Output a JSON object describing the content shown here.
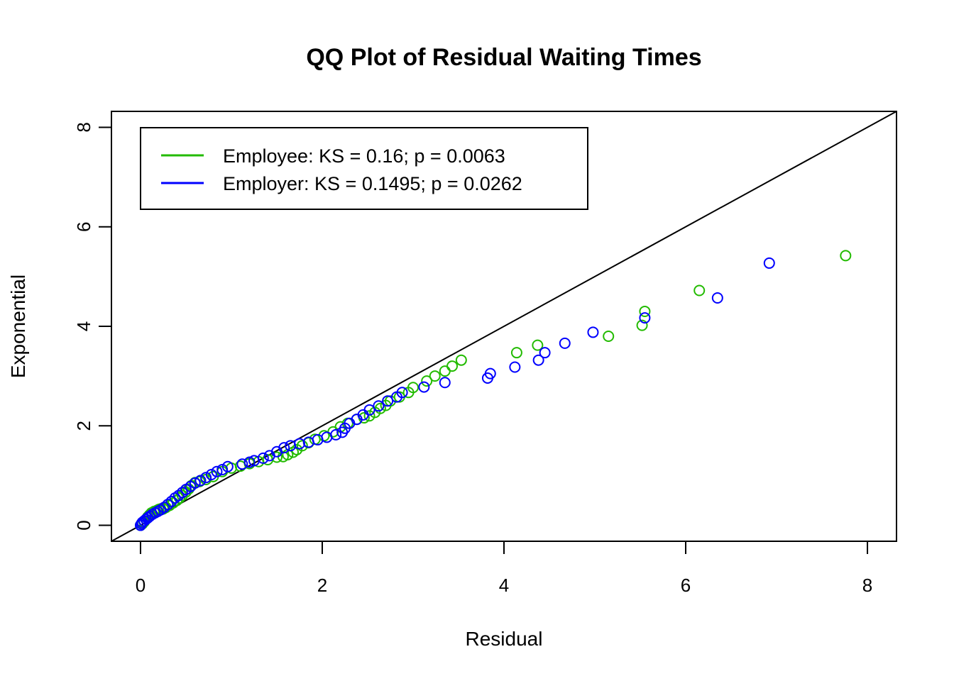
{
  "chart_data": {
    "type": "scatter",
    "title": "QQ Plot of Residual Waiting Times",
    "xlabel": "Residual",
    "ylabel": "Exponential",
    "xlim": [
      -0.32,
      8.32
    ],
    "ylim": [
      -0.32,
      8.32
    ],
    "xticks": [
      "0",
      "2",
      "4",
      "6",
      "8"
    ],
    "yticks": [
      "0",
      "2",
      "4",
      "6",
      "8"
    ],
    "reference_line": "y = x",
    "grid": false,
    "legend_position": "top-left",
    "series": [
      {
        "name": "Employee: KS = 0.16; p = 0.0063",
        "color": "#22bb00",
        "points": [
          [
            0.0,
            0.0
          ],
          [
            0.02,
            0.03
          ],
          [
            0.04,
            0.07
          ],
          [
            0.06,
            0.12
          ],
          [
            0.08,
            0.17
          ],
          [
            0.1,
            0.21
          ],
          [
            0.12,
            0.25
          ],
          [
            0.15,
            0.28
          ],
          [
            0.18,
            0.3
          ],
          [
            0.2,
            0.32
          ],
          [
            0.22,
            0.33
          ],
          [
            0.25,
            0.33
          ],
          [
            0.28,
            0.36
          ],
          [
            0.32,
            0.4
          ],
          [
            0.36,
            0.45
          ],
          [
            0.4,
            0.5
          ],
          [
            0.43,
            0.55
          ],
          [
            0.46,
            0.6
          ],
          [
            0.5,
            0.67
          ],
          [
            0.53,
            0.73
          ],
          [
            0.56,
            0.8
          ],
          [
            0.6,
            0.86
          ],
          [
            0.65,
            0.88
          ],
          [
            0.72,
            0.92
          ],
          [
            0.8,
            0.98
          ],
          [
            0.9,
            1.08
          ],
          [
            1.0,
            1.15
          ],
          [
            1.1,
            1.19
          ],
          [
            1.2,
            1.24
          ],
          [
            1.3,
            1.28
          ],
          [
            1.4,
            1.32
          ],
          [
            1.5,
            1.37
          ],
          [
            1.57,
            1.38
          ],
          [
            1.62,
            1.42
          ],
          [
            1.68,
            1.47
          ],
          [
            1.72,
            1.52
          ],
          [
            1.78,
            1.6
          ],
          [
            1.85,
            1.66
          ],
          [
            1.92,
            1.73
          ],
          [
            2.02,
            1.8
          ],
          [
            2.12,
            1.88
          ],
          [
            2.2,
            1.98
          ],
          [
            2.28,
            2.05
          ],
          [
            2.38,
            2.13
          ],
          [
            2.46,
            2.16
          ],
          [
            2.52,
            2.2
          ],
          [
            2.58,
            2.27
          ],
          [
            2.64,
            2.35
          ],
          [
            2.7,
            2.41
          ],
          [
            2.75,
            2.5
          ],
          [
            2.85,
            2.58
          ],
          [
            2.95,
            2.67
          ],
          [
            3.0,
            2.77
          ],
          [
            3.15,
            2.9
          ],
          [
            3.24,
            3.0
          ],
          [
            3.35,
            3.1
          ],
          [
            3.43,
            3.2
          ],
          [
            3.53,
            3.32
          ],
          [
            4.14,
            3.47
          ],
          [
            4.37,
            3.62
          ],
          [
            5.15,
            3.8
          ],
          [
            5.52,
            4.02
          ],
          [
            5.55,
            4.3
          ],
          [
            6.15,
            4.72
          ],
          [
            7.76,
            5.42
          ]
        ]
      },
      {
        "name": "Employer: KS = 0.1495; p = 0.0262",
        "color": "#0000ff",
        "points": [
          [
            0.0,
            0.0
          ],
          [
            0.01,
            0.03
          ],
          [
            0.02,
            0.06
          ],
          [
            0.04,
            0.09
          ],
          [
            0.06,
            0.12
          ],
          [
            0.08,
            0.15
          ],
          [
            0.1,
            0.18
          ],
          [
            0.13,
            0.22
          ],
          [
            0.16,
            0.25
          ],
          [
            0.19,
            0.28
          ],
          [
            0.22,
            0.31
          ],
          [
            0.26,
            0.36
          ],
          [
            0.3,
            0.42
          ],
          [
            0.34,
            0.48
          ],
          [
            0.38,
            0.55
          ],
          [
            0.42,
            0.6
          ],
          [
            0.46,
            0.66
          ],
          [
            0.5,
            0.72
          ],
          [
            0.55,
            0.78
          ],
          [
            0.6,
            0.85
          ],
          [
            0.66,
            0.9
          ],
          [
            0.72,
            0.96
          ],
          [
            0.78,
            1.02
          ],
          [
            0.84,
            1.08
          ],
          [
            0.9,
            1.12
          ],
          [
            0.96,
            1.18
          ],
          [
            1.12,
            1.23
          ],
          [
            1.2,
            1.27
          ],
          [
            1.25,
            1.3
          ],
          [
            1.35,
            1.35
          ],
          [
            1.42,
            1.4
          ],
          [
            1.5,
            1.48
          ],
          [
            1.58,
            1.56
          ],
          [
            1.65,
            1.6
          ],
          [
            1.75,
            1.64
          ],
          [
            1.85,
            1.67
          ],
          [
            1.95,
            1.72
          ],
          [
            2.05,
            1.77
          ],
          [
            2.15,
            1.82
          ],
          [
            2.22,
            1.87
          ],
          [
            2.25,
            1.95
          ],
          [
            2.3,
            2.05
          ],
          [
            2.38,
            2.13
          ],
          [
            2.45,
            2.22
          ],
          [
            2.52,
            2.32
          ],
          [
            2.62,
            2.4
          ],
          [
            2.72,
            2.5
          ],
          [
            2.82,
            2.58
          ],
          [
            2.88,
            2.67
          ],
          [
            3.12,
            2.78
          ],
          [
            3.35,
            2.87
          ],
          [
            3.82,
            2.96
          ],
          [
            3.85,
            3.05
          ],
          [
            4.12,
            3.18
          ],
          [
            4.38,
            3.32
          ],
          [
            4.45,
            3.47
          ],
          [
            4.67,
            3.66
          ],
          [
            4.98,
            3.88
          ],
          [
            5.55,
            4.17
          ],
          [
            6.35,
            4.57
          ],
          [
            6.92,
            5.27
          ]
        ]
      }
    ]
  }
}
